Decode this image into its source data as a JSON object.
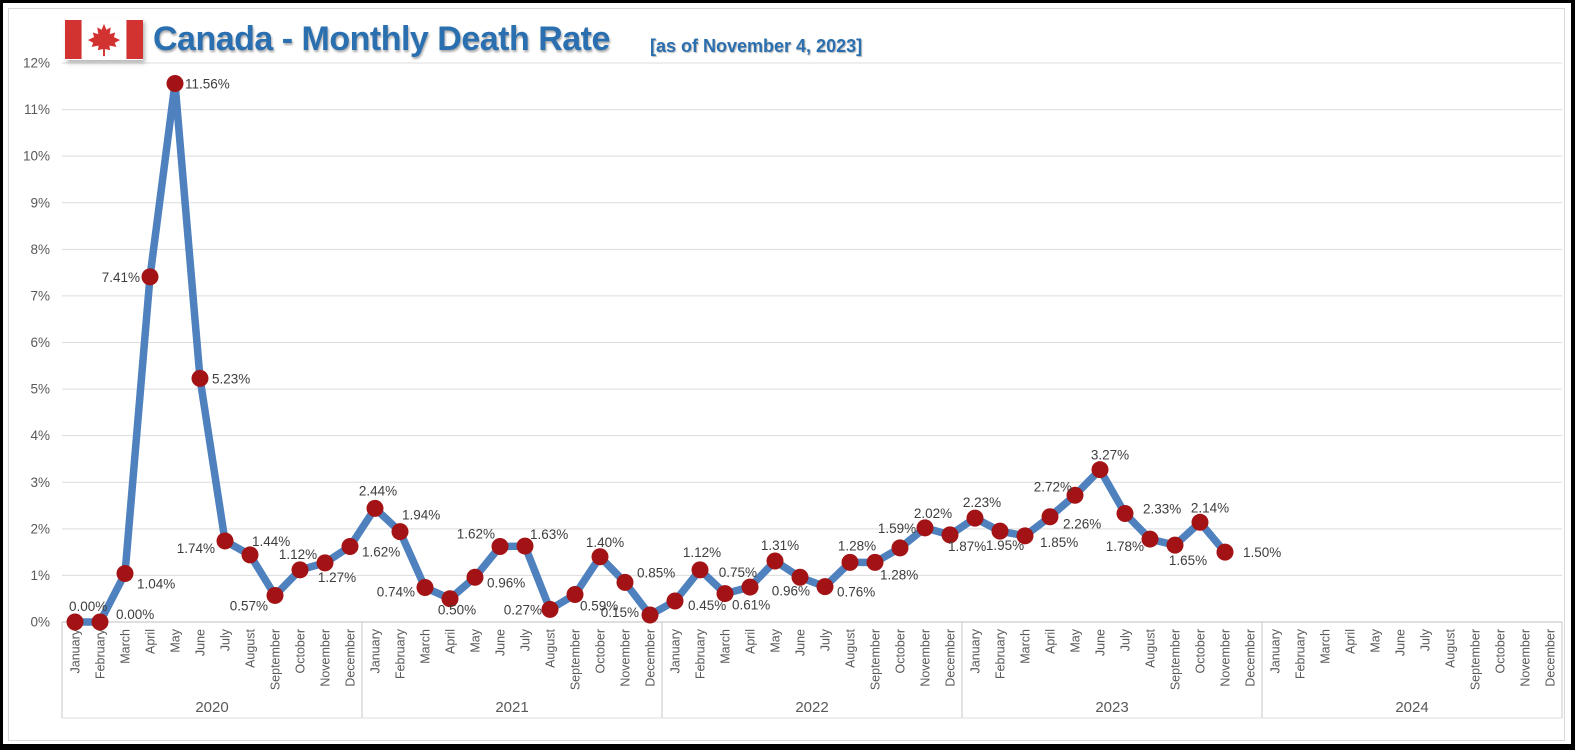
{
  "header": {
    "title": "Canada - Monthly Death Rate",
    "subtitle": "[as of November 4, 2023]"
  },
  "colors": {
    "title_blue": "#2a6fb0",
    "line": "#4e81bd",
    "marker": "#a31315",
    "gridline": "#dcdcdc",
    "axis_line": "#bfbfbf",
    "separator": "#c9c9c9",
    "axis_text": "#595959",
    "data_label_text": "#3d3d3d",
    "flag_red": "#d23331"
  },
  "chart_data": {
    "type": "line",
    "title": "Canada - Monthly Death Rate",
    "subtitle": "[as of November 4, 2023]",
    "grid": true,
    "legend": "none",
    "y_axis": {
      "min": 0,
      "max": 12,
      "tick_step": 1,
      "tick_labels": [
        "0%",
        "1%",
        "2%",
        "3%",
        "4%",
        "5%",
        "6%",
        "7%",
        "8%",
        "9%",
        "10%",
        "11%",
        "12%"
      ]
    },
    "x_axis": {
      "years": [
        "2020",
        "2021",
        "2022",
        "2023",
        "2024"
      ],
      "months": [
        "January",
        "February",
        "March",
        "April",
        "May",
        "June",
        "July",
        "August",
        "September",
        "October",
        "November",
        "December"
      ]
    },
    "series": [
      {
        "name": "Monthly Death Rate",
        "data": [
          {
            "year": "2020",
            "values": [
              0.0,
              0.0,
              1.04,
              7.41,
              11.56,
              5.23,
              1.74,
              1.44,
              0.57,
              1.12,
              1.27,
              1.62
            ],
            "labels": [
              "0.00%",
              "0.00%",
              "1.04%",
              "7.41%",
              "11.56%",
              "5.23%",
              "1.74%",
              "1.44%",
              "0.57%",
              "1.12%",
              "1.27%",
              "1.62%"
            ]
          },
          {
            "year": "2021",
            "values": [
              2.44,
              1.94,
              0.74,
              0.5,
              0.96,
              1.62,
              1.63,
              0.27,
              0.59,
              1.4,
              0.85,
              0.15
            ],
            "labels": [
              "2.44%",
              "1.94%",
              "0.74%",
              "0.50%",
              "0.96%",
              "1.62%",
              "1.63%",
              "0.27%",
              "0.59%",
              "1.40%",
              "0.85%",
              "0.15%"
            ]
          },
          {
            "year": "2022",
            "values": [
              0.45,
              1.12,
              0.61,
              0.75,
              1.31,
              0.96,
              0.76,
              1.28,
              1.28,
              1.59,
              2.02,
              1.87
            ],
            "labels": [
              "0.45%",
              "1.12%",
              "0.61%",
              "0.75%",
              "1.31%",
              "0.96%",
              "0.76%",
              "1.28%",
              "1.28%",
              "1.59%",
              "2.02%",
              "1.87%"
            ]
          },
          {
            "year": "2023",
            "values": [
              2.23,
              1.95,
              1.85,
              2.26,
              2.72,
              3.27,
              2.33,
              1.78,
              1.65,
              2.14,
              1.5
            ],
            "labels": [
              "2.23%",
              "1.95%",
              "1.85%",
              "2.26%",
              "2.72%",
              "3.27%",
              "2.33%",
              "1.78%",
              "1.65%",
              "2.14%",
              "1.50%"
            ]
          }
        ]
      }
    ]
  }
}
